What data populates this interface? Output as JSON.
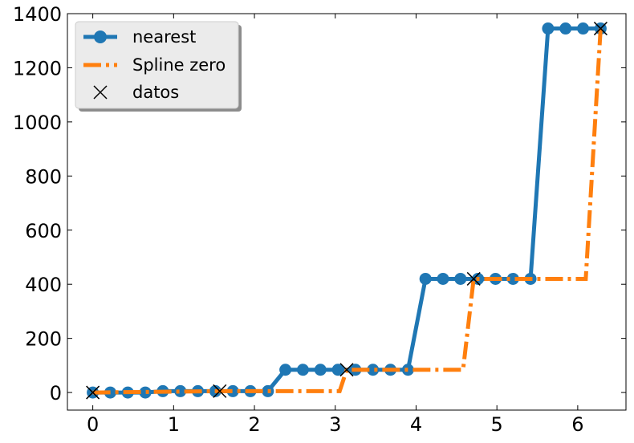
{
  "chart_data": {
    "type": "line",
    "title": "",
    "xlabel": "",
    "ylabel": "",
    "xlim": [
      -0.314,
      6.597
    ],
    "ylim": [
      -65,
      1400
    ],
    "xticks": [
      0,
      1,
      2,
      3,
      4,
      5,
      6
    ],
    "yticks": [
      0,
      200,
      400,
      600,
      800,
      1000,
      1200,
      1400
    ],
    "grid": false,
    "legend_position": "top-left",
    "series": [
      {
        "name": "nearest",
        "style": "solid line with circle markers",
        "color": "#1f77b4",
        "x": [
          0,
          0.2166,
          0.4333,
          0.6499,
          0.8666,
          1.0832,
          1.2999,
          1.5165,
          1.7332,
          1.9498,
          2.1665,
          2.3831,
          2.5998,
          2.8164,
          3.0331,
          3.2497,
          3.4664,
          3.683,
          3.8997,
          4.1163,
          4.333,
          4.5496,
          4.7663,
          4.9829,
          5.1996,
          5.4162,
          5.6329,
          5.8495,
          6.0662,
          6.2832
        ],
        "y": [
          0,
          0,
          0,
          0,
          5,
          5,
          5,
          5,
          5,
          5,
          5,
          84,
          84,
          84,
          84,
          84,
          84,
          84,
          84,
          420,
          420,
          420,
          420,
          420,
          420,
          420,
          1345,
          1345,
          1345,
          1345
        ]
      },
      {
        "name": "Spline zero",
        "style": "dash-dot line",
        "color": "#ff7f0e",
        "x": [
          0,
          1.5708,
          1.5708,
          3.0543,
          3.1416,
          3.1416,
          4.5815,
          4.7124,
          4.7124,
          6.0994,
          6.2832
        ],
        "y": [
          0,
          5,
          5,
          5,
          84,
          84,
          84,
          420,
          420,
          420,
          1345
        ]
      },
      {
        "name": "datos",
        "style": "x markers",
        "color": "#000000",
        "x": [
          0,
          1.5708,
          3.1416,
          4.7124,
          6.2832
        ],
        "y": [
          0,
          5,
          84,
          420,
          1345
        ]
      }
    ]
  },
  "colors": {
    "nearest": "#1f77b4",
    "spline": "#ff7f0e",
    "datos": "#000000",
    "legend_bg": "#ebebeb"
  }
}
